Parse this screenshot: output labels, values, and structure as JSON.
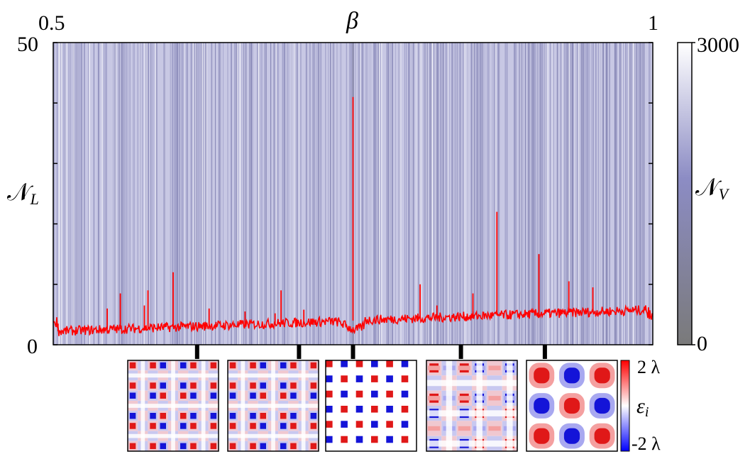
{
  "chart_data": {
    "type": "line",
    "title": "",
    "xlabel": "β",
    "ylabel": "𝒩",
    "ylabel_sub": "L",
    "xlim": [
      0.5,
      1
    ],
    "ylim": [
      0,
      50
    ],
    "x_ticks": [
      "0.5",
      "1"
    ],
    "y_ticks": [
      "0",
      "50"
    ],
    "grid": false,
    "series": [],
    "spikes": [
      {
        "beta": 0.504,
        "y": 3.5
      },
      {
        "beta": 0.545,
        "y": 6.0
      },
      {
        "beta": 0.556,
        "y": 8.5
      },
      {
        "beta": 0.576,
        "y": 6.5
      },
      {
        "beta": 0.579,
        "y": 9.0
      },
      {
        "beta": 0.6,
        "y": 12.0
      },
      {
        "beta": 0.63,
        "y": 6.0
      },
      {
        "beta": 0.66,
        "y": 5.5
      },
      {
        "beta": 0.685,
        "y": 5.2
      },
      {
        "beta": 0.69,
        "y": 9.0
      },
      {
        "beta": 0.709,
        "y": 5.8
      },
      {
        "beta": 0.75,
        "y": 41.0
      },
      {
        "beta": 0.806,
        "y": 10.0
      },
      {
        "beta": 0.82,
        "y": 6.5
      },
      {
        "beta": 0.85,
        "y": 8.5
      },
      {
        "beta": 0.87,
        "y": 22.0
      },
      {
        "beta": 0.905,
        "y": 15.0
      },
      {
        "beta": 0.93,
        "y": 10.5
      },
      {
        "beta": 0.95,
        "y": 9.5
      },
      {
        "beta": 0.985,
        "y": 6.0
      }
    ],
    "colorbar_vertical": {
      "label": "𝒩",
      "label_sub": "V",
      "min": 0,
      "max": 3000,
      "tick_labels": [
        "0",
        "3000"
      ],
      "color_low": "#7a7a7a",
      "color_high": "#ffffff",
      "color_mid": "#8c8cc4"
    },
    "insets": [
      {
        "beta": 0.62,
        "pattern": "stripes-dense"
      },
      {
        "beta": 0.705,
        "pattern": "stripes-medium"
      },
      {
        "beta": 0.75,
        "pattern": "checker-dots"
      },
      {
        "beta": 0.84,
        "pattern": "stripes-wide"
      },
      {
        "beta": 0.91,
        "pattern": "smooth-checker"
      }
    ],
    "colorbar_strain": {
      "label": "ε",
      "label_sub": "i",
      "tick_labels": [
        "2 λ",
        "-2 λ"
      ],
      "color_high": "#ff0000",
      "color_mid": "#ffffff",
      "color_low": "#0000ff"
    },
    "line_color": "#ff0000",
    "background_band_color": "#c8c8e4"
  }
}
